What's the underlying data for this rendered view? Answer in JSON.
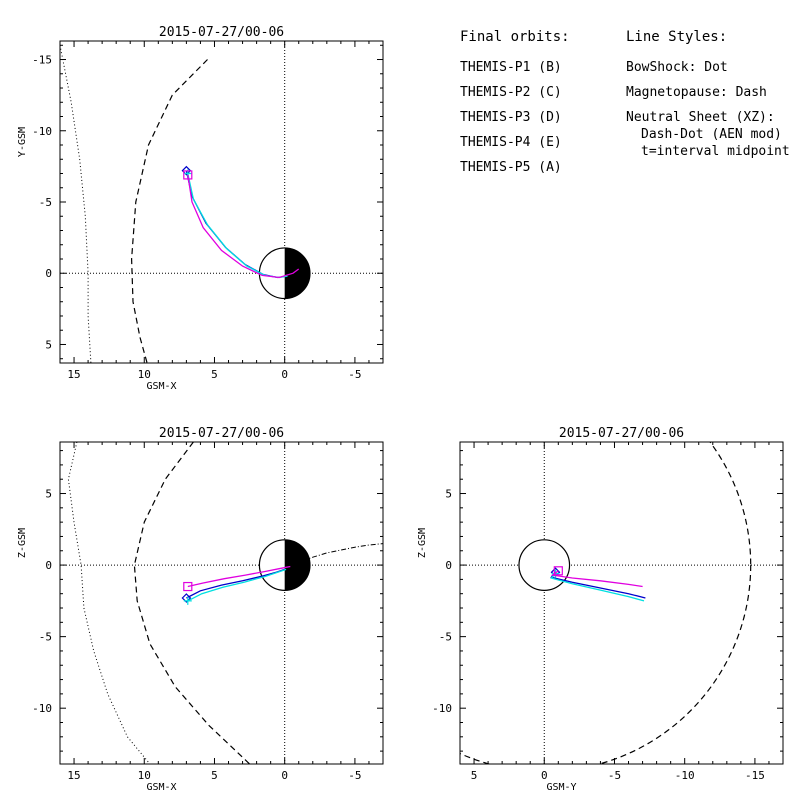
{
  "legend": {
    "orbits_header": "Final orbits:",
    "probes": [
      {
        "label": "THEMIS-P1 (B)",
        "color": "#ff0000"
      },
      {
        "label": "THEMIS-P2 (C)",
        "color": "#00d000"
      },
      {
        "label": "THEMIS-P3 (D)",
        "color": "#00e0e0"
      },
      {
        "label": "THEMIS-P4 (E)",
        "color": "#0000cc"
      },
      {
        "label": "THEMIS-P5 (A)",
        "color": "#e000e0"
      }
    ],
    "styles_header": "Line Styles:",
    "styles": [
      "BowShock: Dot",
      "Magnetopause: Dash",
      "Neutral Sheet (XZ):",
      "Dash-Dot (AEN mod)",
      "t=interval midpoint"
    ]
  },
  "chart_data": [
    {
      "type": "line",
      "title": "2015-07-27/00-06",
      "xlabel": "GSM-X",
      "ylabel": "Y-GSM",
      "xlim": [
        16.0,
        -7.0
      ],
      "ylim": [
        6.3,
        -16.3
      ],
      "xticks": [
        15,
        10,
        5,
        0,
        -5
      ],
      "yticks": [
        -15,
        -10,
        -5,
        0,
        5
      ],
      "tick_labels_x": [
        "15",
        "10",
        "5",
        "0",
        "-5"
      ],
      "tick_labels_y": [
        "-15",
        "-10",
        "-5",
        "0",
        "5"
      ],
      "bow_shock": [
        [
          16.0,
          -16.0
        ],
        [
          15.2,
          -12.0
        ],
        [
          14.6,
          -8.0
        ],
        [
          14.2,
          -4.0
        ],
        [
          14.0,
          0.0
        ],
        [
          14.0,
          3.0
        ],
        [
          13.8,
          6.3
        ]
      ],
      "magnetopause": [
        [
          5.5,
          -15.0
        ],
        [
          8.0,
          -12.5
        ],
        [
          9.7,
          -9.0
        ],
        [
          10.6,
          -5.0
        ],
        [
          10.9,
          -1.0
        ],
        [
          10.8,
          2.0
        ],
        [
          10.3,
          4.5
        ],
        [
          9.8,
          6.3
        ]
      ],
      "series": [
        {
          "name": "THEMIS-P4 (E)",
          "color": "#0000cc",
          "x": [
            7.0,
            6.6,
            5.6,
            4.2,
            2.8,
            1.5,
            0.5,
            -0.2
          ],
          "y": [
            -7.2,
            -5.4,
            -3.5,
            -1.8,
            -0.6,
            0.1,
            0.3,
            0.2
          ],
          "marker": "diamond"
        },
        {
          "name": "THEMIS-P3 (D)",
          "color": "#00e0e0",
          "x": [
            6.9,
            6.5,
            5.5,
            4.1,
            2.7,
            1.4,
            0.4,
            -0.2
          ],
          "y": [
            -7.0,
            -5.2,
            -3.4,
            -1.7,
            -0.5,
            0.15,
            0.3,
            0.2
          ],
          "marker": "plus"
        },
        {
          "name": "THEMIS-P5 (A)",
          "color": "#e000e0",
          "x": [
            6.9,
            6.6,
            5.8,
            4.5,
            3.0,
            1.6,
            0.4,
            -0.6,
            -1.0
          ],
          "y": [
            -6.9,
            -5.0,
            -3.2,
            -1.6,
            -0.5,
            0.15,
            0.3,
            0.0,
            -0.3
          ],
          "marker": "square"
        }
      ]
    },
    {
      "type": "line",
      "title": "2015-07-27/00-06",
      "xlabel": "GSM-X",
      "ylabel": "Z-GSM",
      "xlim": [
        16.0,
        -7.0
      ],
      "ylim": [
        -13.9,
        8.6
      ],
      "xticks": [
        15,
        10,
        5,
        0,
        -5
      ],
      "yticks": [
        5,
        0,
        -5,
        -10
      ],
      "tick_labels_x": [
        "15",
        "10",
        "5",
        "0",
        "-5"
      ],
      "tick_labels_y": [
        "5",
        "0",
        "-5",
        "-10"
      ],
      "bow_shock": [
        [
          14.8,
          8.6
        ],
        [
          15.4,
          6.0
        ],
        [
          15.0,
          3.0
        ],
        [
          14.5,
          0.0
        ],
        [
          14.3,
          -3.0
        ],
        [
          13.6,
          -6.0
        ],
        [
          12.6,
          -9.0
        ],
        [
          11.2,
          -12.0
        ],
        [
          9.6,
          -13.9
        ]
      ],
      "magnetopause": [
        [
          6.5,
          8.6
        ],
        [
          8.5,
          6.0
        ],
        [
          10.0,
          3.0
        ],
        [
          10.7,
          0.0
        ],
        [
          10.5,
          -2.5
        ],
        [
          9.6,
          -5.5
        ],
        [
          7.8,
          -8.5
        ],
        [
          5.4,
          -11.2
        ],
        [
          2.5,
          -13.9
        ]
      ],
      "neutral_sheet": [
        [
          0.0,
          -0.3
        ],
        [
          -1.0,
          0.2
        ],
        [
          -2.0,
          0.55
        ],
        [
          -3.0,
          0.85
        ],
        [
          -4.0,
          1.05
        ],
        [
          -5.0,
          1.25
        ],
        [
          -6.0,
          1.4
        ],
        [
          -7.0,
          1.5
        ]
      ],
      "series": [
        {
          "name": "THEMIS-P4 (E)",
          "color": "#0000cc",
          "x": [
            7.0,
            6.0,
            4.5,
            3.0,
            1.5,
            0.6,
            0.0
          ],
          "y": [
            -2.3,
            -1.8,
            -1.4,
            -1.1,
            -0.75,
            -0.5,
            -0.3
          ],
          "marker": "diamond"
        },
        {
          "name": "THEMIS-P3 (D)",
          "color": "#00e0e0",
          "x": [
            6.9,
            5.9,
            4.4,
            2.9,
            1.4,
            0.5,
            -0.1
          ],
          "y": [
            -2.5,
            -2.0,
            -1.55,
            -1.2,
            -0.8,
            -0.5,
            -0.3
          ],
          "marker": "plus"
        },
        {
          "name": "THEMIS-P5 (A)",
          "color": "#e000e0",
          "x": [
            6.9,
            5.8,
            4.3,
            2.8,
            1.4,
            0.4,
            -0.4
          ],
          "y": [
            -1.5,
            -1.25,
            -0.95,
            -0.7,
            -0.45,
            -0.25,
            -0.1
          ],
          "marker": "square"
        }
      ]
    },
    {
      "type": "line",
      "title": "2015-07-27/00-06",
      "xlabel": "GSM-Y",
      "ylabel": "Z-GSM",
      "xlim": [
        6.0,
        -17.0
      ],
      "ylim": [
        -13.9,
        8.6
      ],
      "xticks": [
        5,
        0,
        -5,
        -10,
        -15
      ],
      "yticks": [
        5,
        0,
        -5,
        -10
      ],
      "tick_labels_x": [
        "5",
        "0",
        "-5",
        "-10",
        "-15"
      ],
      "tick_labels_y": [
        "5",
        "0",
        "-5",
        "-10"
      ],
      "magnetopause_circle_radius": 14.7,
      "series": [
        {
          "name": "THEMIS-P4 (E)",
          "color": "#0000cc",
          "x": [
            -0.8,
            -0.5,
            -2.0,
            -4.0,
            -6.0,
            -7.2
          ],
          "y": [
            -0.5,
            -0.85,
            -1.2,
            -1.6,
            -2.0,
            -2.3
          ],
          "marker": "diamond"
        },
        {
          "name": "THEMIS-P3 (D)",
          "color": "#00e0e0",
          "x": [
            -0.8,
            -0.5,
            -2.0,
            -4.0,
            -6.0,
            -7.1
          ],
          "y": [
            -0.6,
            -0.9,
            -1.3,
            -1.75,
            -2.2,
            -2.5
          ],
          "marker": "plus"
        },
        {
          "name": "THEMIS-P5 (A)",
          "color": "#e000e0",
          "x": [
            -1.0,
            -0.6,
            -2.0,
            -4.0,
            -6.0,
            -7.0
          ],
          "y": [
            -0.4,
            -0.7,
            -0.9,
            -1.1,
            -1.35,
            -1.5
          ],
          "marker": "square"
        }
      ]
    }
  ]
}
